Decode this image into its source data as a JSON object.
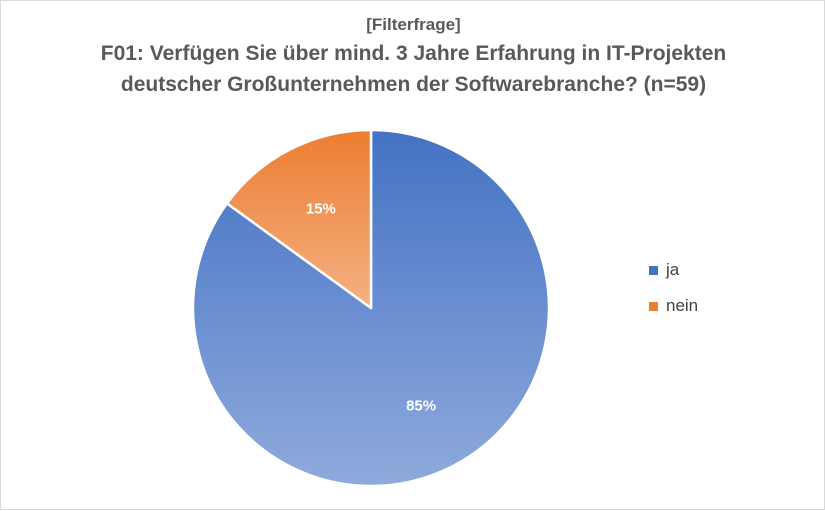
{
  "chart_data": {
    "type": "pie",
    "subtitle": "[Filterfrage]",
    "title": "F01: Verfügen Sie über mind. 3 Jahre Erfahrung in IT-Projekten deutscher Großunternehmen der Softwarebranche? (n=59)",
    "title_lines": [
      "F01: Verfügen Sie über mind. 3 Jahre Erfahrung in IT-Projekten",
      "deutscher Großunternehmen der Softwarebranche? (n=59)"
    ],
    "categories": [
      "ja",
      "nein"
    ],
    "values": [
      85,
      15
    ],
    "data_labels": [
      "85%",
      "15%"
    ],
    "colors": [
      "#4472c4",
      "#ed7d31"
    ],
    "colors_light": [
      "#8faadc",
      "#f4b183"
    ],
    "legend_position": "right"
  }
}
